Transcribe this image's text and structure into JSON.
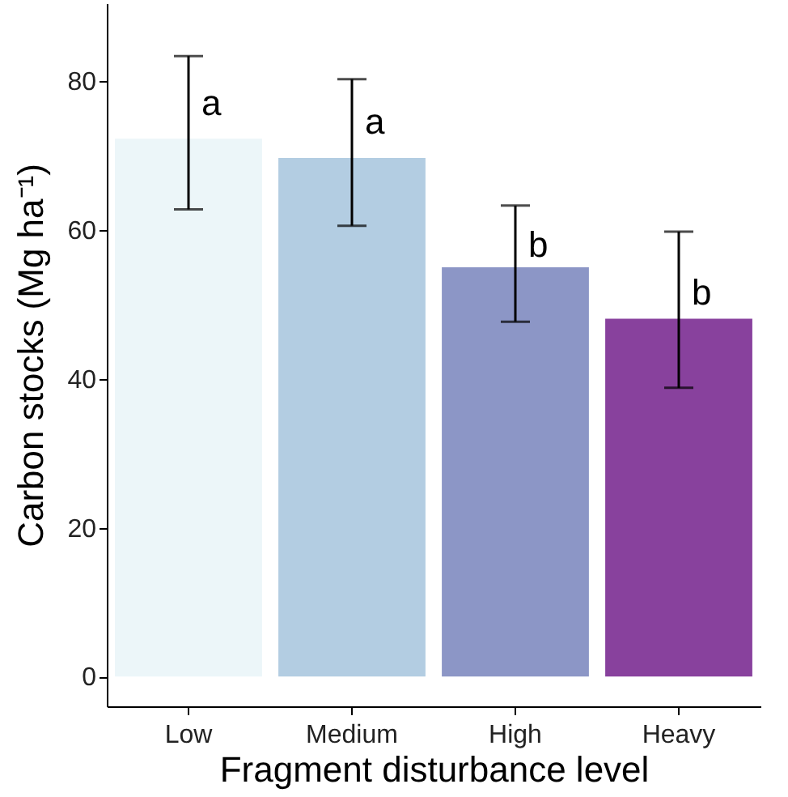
{
  "chart_data": {
    "type": "bar",
    "xlabel": "Fragment disturbance level",
    "ylabel": "Carbon stocks (Mg ha⁻¹)",
    "categories": [
      "Low",
      "Medium",
      "High",
      "Heavy"
    ],
    "values": [
      72.3,
      69.7,
      55.0,
      48.1
    ],
    "colors": [
      "#ecf6f9",
      "#b3cde2",
      "#8c96c6",
      "#88419d"
    ],
    "errors": [
      [
        62.8,
        83.4
      ],
      [
        60.6,
        80.3
      ],
      [
        47.7,
        63.3
      ],
      [
        38.8,
        59.8
      ]
    ],
    "ylim": [
      -4,
      90.5
    ],
    "yticks": [
      0,
      20,
      40,
      60,
      80
    ],
    "grid": false,
    "annotations": [
      {
        "text": "a",
        "x": "Low",
        "y": 77
      },
      {
        "text": "a",
        "x": "Medium",
        "y": 74.5
      },
      {
        "text": "b",
        "x": "High",
        "y": 58
      },
      {
        "text": "b",
        "x": "Heavy",
        "y": 51.5
      }
    ]
  }
}
